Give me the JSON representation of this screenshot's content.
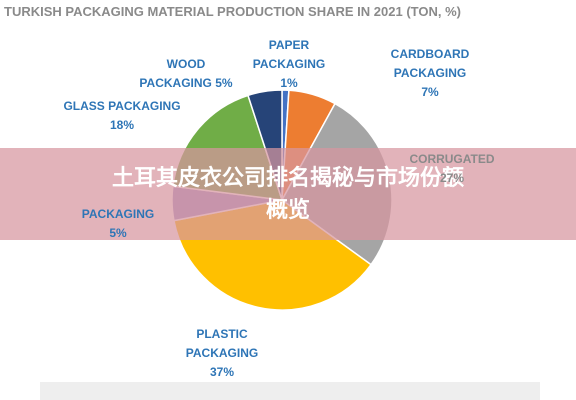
{
  "chart_data": {
    "type": "pie",
    "title": "TURKISH PACKAGING MATERIAL PRODUCTION SHARE IN 2021 (TON, %)",
    "categories": [
      "PAPER PACKAGING",
      "CARDBOARD PACKAGING",
      "CORRUGATED",
      "PLASTIC PACKAGING",
      "PACKAGING",
      "GLASS PACKAGING",
      "WOOD PACKAGING"
    ],
    "values": [
      1,
      7,
      27,
      37,
      5,
      18,
      5
    ],
    "value_labels": [
      "1%",
      "7%",
      "27%",
      "37%",
      "5%",
      "18%",
      "5%"
    ],
    "colors": [
      "#4472c4",
      "#ed7d31",
      "#a5a5a5",
      "#ffc000",
      "#9e8fc9",
      "#70ad47",
      "#264478"
    ]
  },
  "banner": {
    "lines": [
      "土耳其皮衣公司排名揭秘与市场份额",
      "概览"
    ]
  }
}
